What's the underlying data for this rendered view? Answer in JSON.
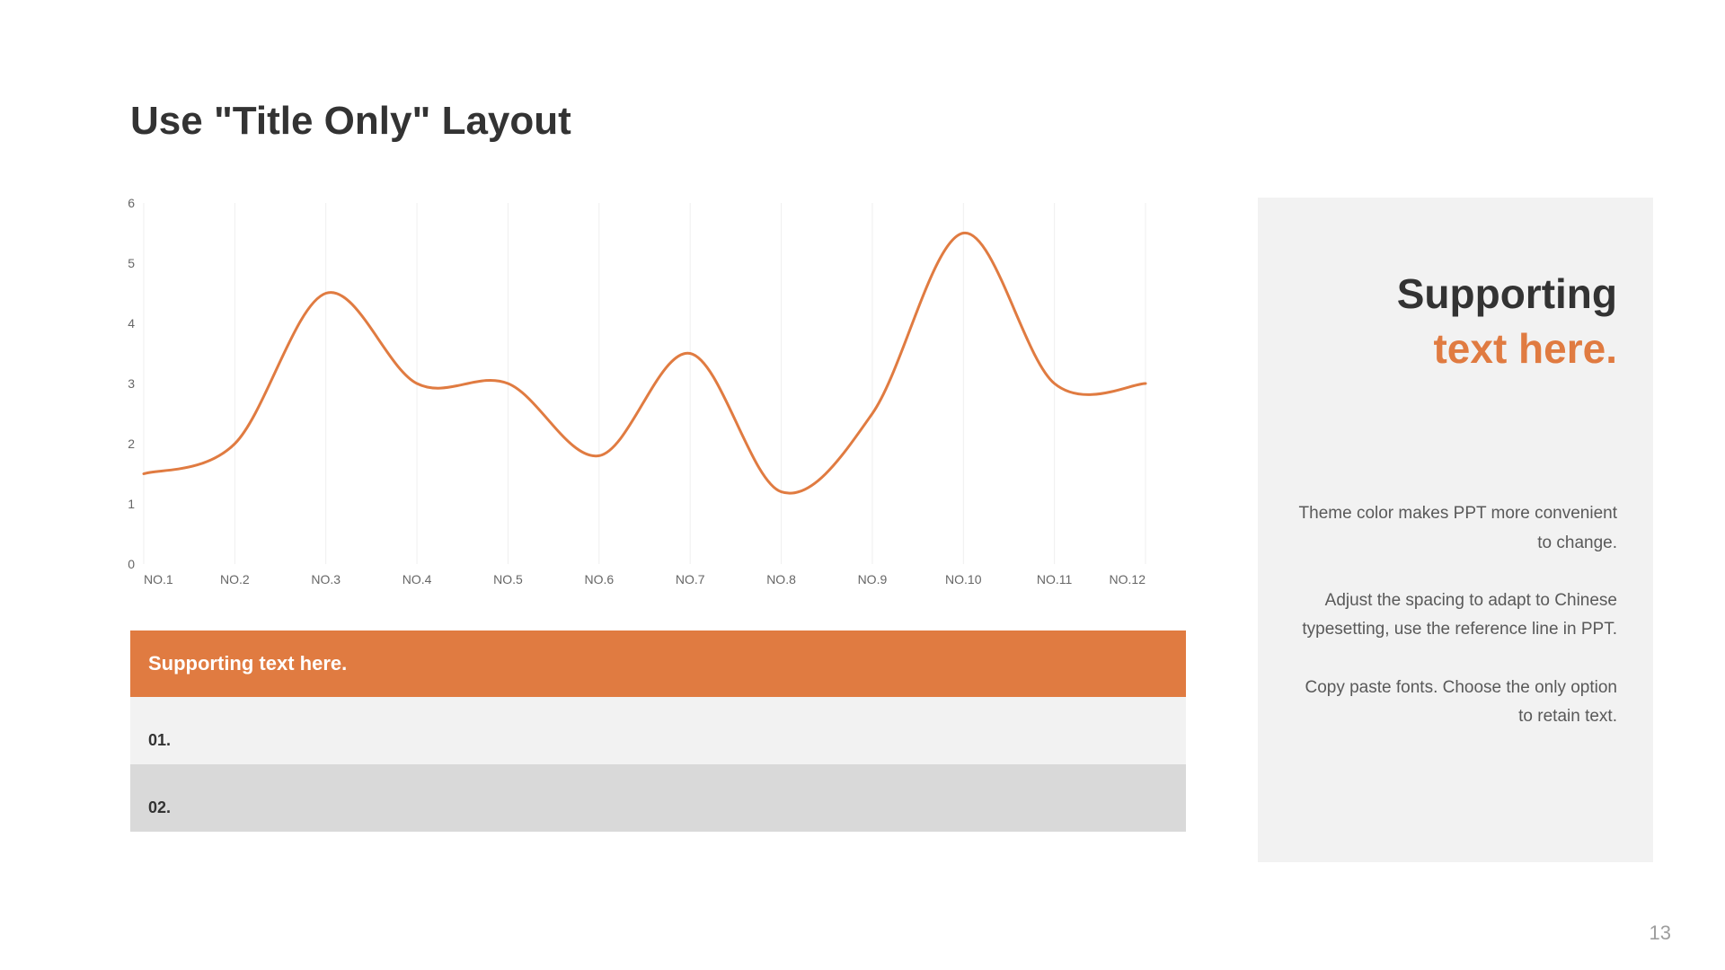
{
  "title": "Use \"Title Only\" Layout",
  "chart": {
    "type": "line-smooth",
    "line_color": "#e07b41",
    "line_width": 3,
    "background_color": "#ffffff",
    "grid_color": "#efefef",
    "axis_font_color": "#666666",
    "axis_fontsize": 14,
    "ylim": [
      0,
      6
    ],
    "ytick_step": 1,
    "yticks": [
      "0",
      "1",
      "2",
      "3",
      "4",
      "5",
      "6"
    ],
    "categories": [
      "NO.1",
      "NO.2",
      "NO.3",
      "NO.4",
      "NO.5",
      "NO.6",
      "NO.7",
      "NO.8",
      "NO.9",
      "NO.10",
      "NO.11",
      "NO.12"
    ],
    "values": [
      1.5,
      2.0,
      4.5,
      3.0,
      3.0,
      1.8,
      3.5,
      1.2,
      2.5,
      5.5,
      3.0,
      3.0
    ]
  },
  "table": {
    "header": "Supporting text here.",
    "rows": [
      "01.",
      "02."
    ],
    "header_bg": "#e07b41",
    "header_text_color": "#ffffff",
    "row1_bg": "#f2f2f2",
    "row2_bg": "#d9d9d9"
  },
  "side": {
    "line1": "Supporting",
    "line2": "text here.",
    "line1_color": "#333333",
    "line2_color": "#e07b41",
    "panel_bg": "#f2f2f2",
    "body_color": "#595959",
    "body_fontsize": 19,
    "heading_fontsize": 46,
    "paragraphs": [
      "Theme  color makes  PPT more convenient  to change.",
      "Adjust  the spacing  to adapt to Chinese  typesetting,  use the reference line in PPT.",
      "Copy paste  fonts. Choose  the only option  to retain text."
    ]
  },
  "page_number": "13"
}
